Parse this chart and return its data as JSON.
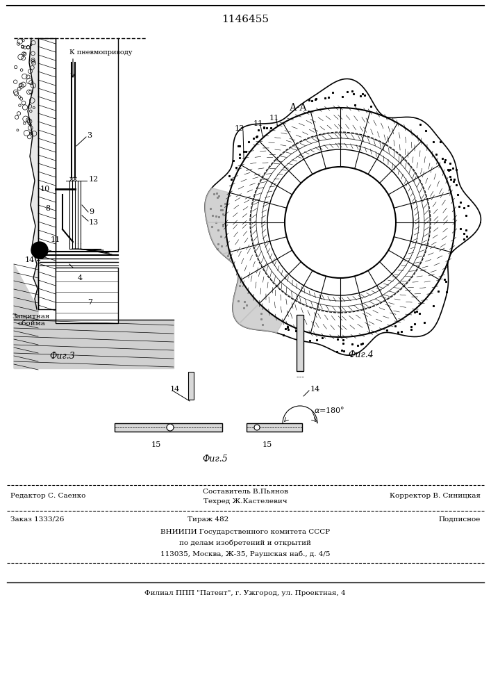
{
  "title": "1146455",
  "fig3_label": "Фиг.3",
  "fig4_label": "Фиг.4",
  "fig5_label": "Фиг.5",
  "section_label": "А-А",
  "label_k_pnevmo": "К пневмоприводу",
  "label_zashchita": "Защитная\nобойма",
  "editor_line": "Редактор С. Саенко",
  "compositor_line": "Составитель В.Пьянов",
  "techred_line": "Техред Ж.Кастелевич",
  "corrector_line": "Корректор В. Синицкая",
  "order_line": "Заказ 1333/26",
  "tirazh_line": "Тираж 482",
  "podpisnoe_line": "Подписное",
  "vniip_line": "ВНИИПИ Государственного комитета СССР",
  "po_delam_line": "по делам изобретений и открытий",
  "address_line": "113035, Москва, Ж-35, Раушская наб., д. 4/5",
  "filial_line": "Филиал ППП \"Патент\", г. Ужгород, ул. Проектная, 4",
  "bg_color": "#ffffff",
  "line_color": "#000000"
}
